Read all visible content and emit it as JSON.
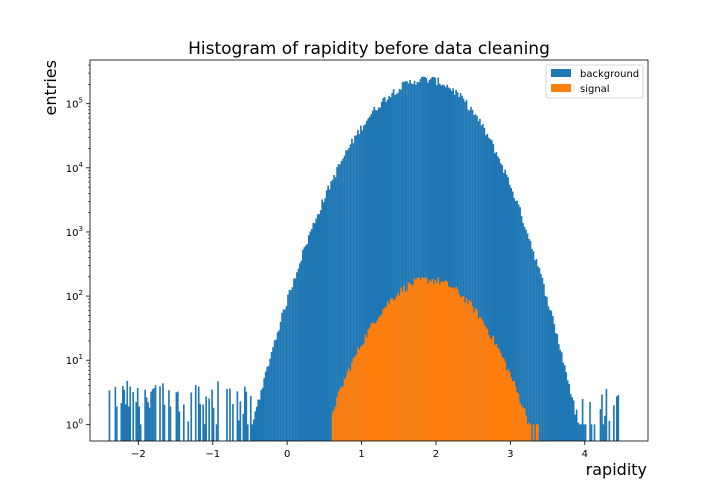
{
  "chart_data": {
    "type": "histogram",
    "title": "Histogram of rapidity before data cleaning",
    "xlabel": "rapidity",
    "ylabel": "entries",
    "yscale": "log",
    "xlim": [
      -2.65,
      4.85
    ],
    "ylim": [
      0.55,
      480000
    ],
    "x_ticks": [
      -2,
      -1,
      0,
      1,
      2,
      3,
      4
    ],
    "x_tick_labels": [
      "−2",
      "−1",
      "0",
      "1",
      "2",
      "3",
      "4"
    ],
    "y_ticks": [
      1,
      10,
      100,
      1000,
      10000,
      100000
    ],
    "y_tick_labels": [
      {
        "base": "10",
        "exp": "0"
      },
      {
        "base": "10",
        "exp": "1"
      },
      {
        "base": "10",
        "exp": "2"
      },
      {
        "base": "10",
        "exp": "3"
      },
      {
        "base": "10",
        "exp": "4"
      },
      {
        "base": "10",
        "exp": "5"
      }
    ],
    "legend_position": "upper right",
    "series": [
      {
        "name": "background",
        "color": "#1f77b4",
        "peak_center": 1.87,
        "peak_value": 240000,
        "sigma_left": 0.47,
        "sigma_right": 0.41,
        "range": [
          -2.4,
          4.5
        ],
        "tail_level": 1.5
      },
      {
        "name": "signal",
        "color": "#ff7f0e",
        "peak_center": 1.9,
        "peak_value": 180,
        "sigma_left": 0.42,
        "sigma_right": 0.42,
        "range": [
          0.6,
          3.4
        ]
      }
    ],
    "bin_width": 0.02
  }
}
